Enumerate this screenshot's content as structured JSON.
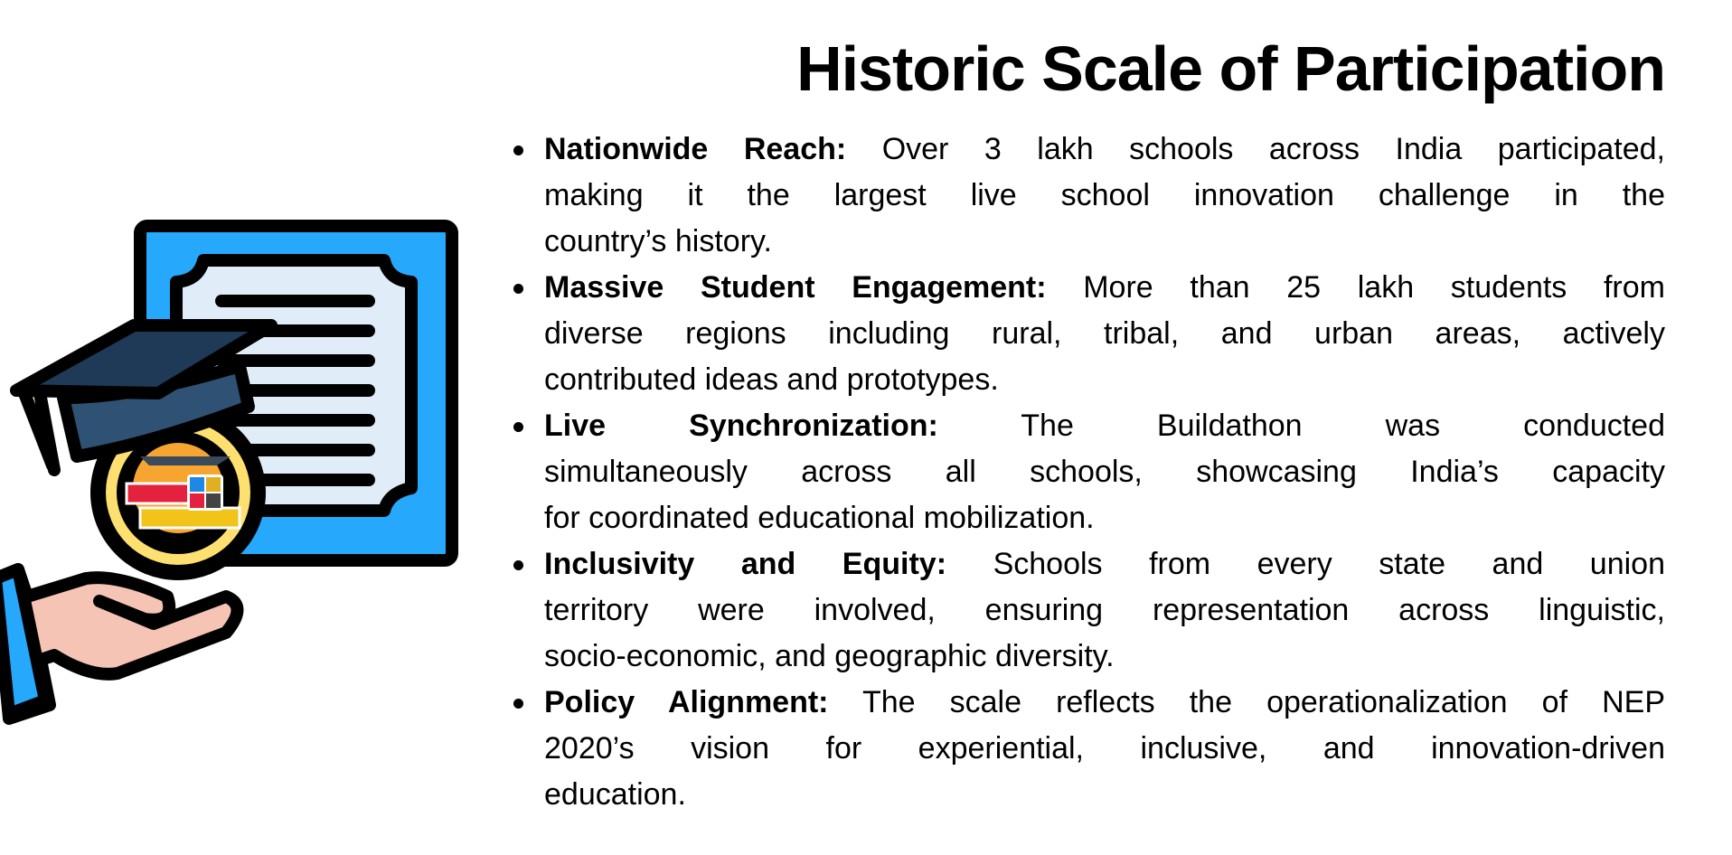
{
  "title": "Historic Scale of Participation",
  "items": [
    {
      "label": "Nationwide Reach:",
      "lines": [
        " Over 3 lakh schools across India participated,",
        "making it the largest live school innovation challenge in the",
        "country’s history."
      ]
    },
    {
      "label": "Massive Student Engagement:",
      "lines": [
        " More than 25 lakh students from",
        "diverse regions including rural, tribal, and urban areas, actively",
        "contributed ideas and prototypes."
      ]
    },
    {
      "label": "Live Synchronization:",
      "lines": [
        " The Buildathon was conducted",
        "simultaneously across all schools, showcasing India’s capacity",
        "for coordinated educational mobilization."
      ]
    },
    {
      "label": "Inclusivity and Equity:",
      "lines": [
        " Schools from every state and union",
        "territory were involved, ensuring representation across linguistic,",
        "socio-economic, and geographic diversity."
      ]
    },
    {
      "label": "Policy Alignment:",
      "lines": [
        " The scale reflects the operationalization of NEP",
        "2020’s vision for experiential, inclusive, and innovation-driven",
        "education."
      ]
    }
  ],
  "illustration": {
    "icon": "certificate-graduation-cap-hand-icon",
    "colors": {
      "frame": "#26a8fc",
      "paper": "#e0edf8",
      "cap": "#1f3a57",
      "hand": "#f5c4b4",
      "ring": "#fde070"
    }
  }
}
